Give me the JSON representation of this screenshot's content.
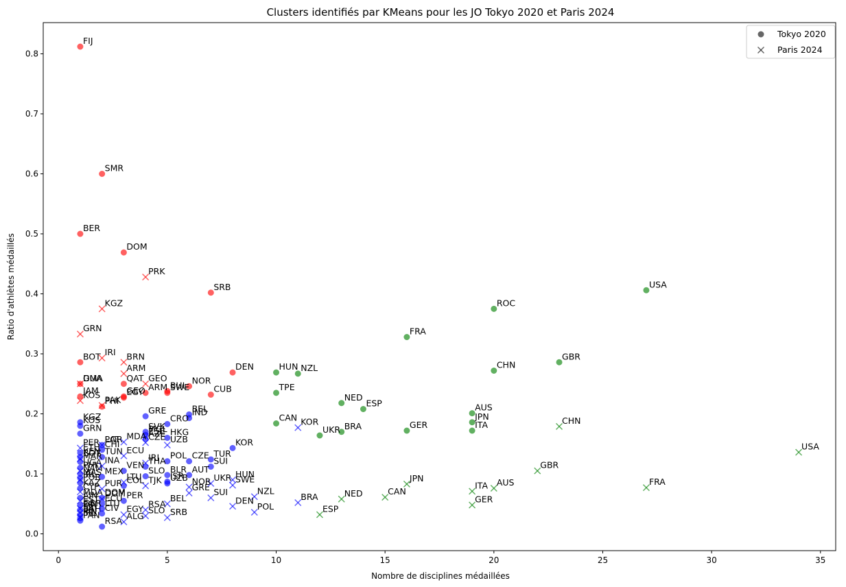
{
  "chart_data": {
    "type": "scatter",
    "title": "Clusters identifiés par KMeans pour les JO Tokyo 2020 et Paris 2024",
    "xlabel": "Nombre de disciplines médaillées",
    "ylabel": "Ratio d'athlètes médaillés",
    "xlim": [
      -0.7,
      35.7
    ],
    "ylim": [
      -0.028,
      0.852
    ],
    "xticks": [
      0,
      5,
      10,
      15,
      20,
      25,
      30,
      35
    ],
    "yticks": [
      0.0,
      0.1,
      0.2,
      0.3,
      0.4,
      0.5,
      0.6,
      0.7,
      0.8
    ],
    "grid": false,
    "legend_position": "top-right",
    "legend": [
      {
        "marker": "circle",
        "label": "Tokyo 2020"
      },
      {
        "marker": "x",
        "label": "Paris 2024"
      }
    ],
    "colors": {
      "cluster_red": "#ff0000",
      "cluster_green": "#008000",
      "cluster_blue": "#0000ff",
      "legend_marker": "#000000"
    },
    "series": [
      {
        "marker": "circle",
        "points": [
          {
            "x": 1,
            "y": 0.812,
            "label": "FIJ",
            "c": "r"
          },
          {
            "x": 2,
            "y": 0.6,
            "label": "SMR",
            "c": "r"
          },
          {
            "x": 1,
            "y": 0.5,
            "label": "BER",
            "c": "r"
          },
          {
            "x": 3,
            "y": 0.469,
            "label": "DOM",
            "c": "r"
          },
          {
            "x": 7,
            "y": 0.402,
            "label": "SRB",
            "c": "r"
          },
          {
            "x": 1,
            "y": 0.286,
            "label": "BOT",
            "c": "r"
          },
          {
            "x": 8,
            "y": 0.269,
            "label": "DEN",
            "c": "r"
          },
          {
            "x": 1,
            "y": 0.25,
            "label": "GUA",
            "c": "r"
          },
          {
            "x": 3,
            "y": 0.25,
            "label": "QAT",
            "c": "r"
          },
          {
            "x": 6,
            "y": 0.246,
            "label": "NOR",
            "c": "r"
          },
          {
            "x": 5,
            "y": 0.238,
            "label": "BUL",
            "c": "r"
          },
          {
            "x": 5,
            "y": 0.235,
            "label": "SWE",
            "c": "r"
          },
          {
            "x": 4,
            "y": 0.235,
            "label": "ARM",
            "c": "r"
          },
          {
            "x": 7,
            "y": 0.232,
            "label": "CUB",
            "c": "r"
          },
          {
            "x": 1,
            "y": 0.229,
            "label": "JAM",
            "c": "r"
          },
          {
            "x": 3,
            "y": 0.229,
            "label": "GEO",
            "c": "r"
          },
          {
            "x": 3,
            "y": 0.227,
            "label": "EGY",
            "c": "r"
          },
          {
            "x": 2,
            "y": 0.212,
            "label": "PHI",
            "c": "r"
          },
          {
            "x": 27,
            "y": 0.406,
            "label": "USA",
            "c": "g"
          },
          {
            "x": 20,
            "y": 0.375,
            "label": "ROC",
            "c": "g"
          },
          {
            "x": 16,
            "y": 0.328,
            "label": "FRA",
            "c": "g"
          },
          {
            "x": 23,
            "y": 0.286,
            "label": "GBR",
            "c": "g"
          },
          {
            "x": 20,
            "y": 0.272,
            "label": "CHN",
            "c": "g"
          },
          {
            "x": 10,
            "y": 0.269,
            "label": "HUN",
            "c": "g"
          },
          {
            "x": 11,
            "y": 0.267,
            "label": "NZL",
            "c": "g"
          },
          {
            "x": 10,
            "y": 0.235,
            "label": "TPE",
            "c": "g"
          },
          {
            "x": 13,
            "y": 0.218,
            "label": "NED",
            "c": "g"
          },
          {
            "x": 14,
            "y": 0.208,
            "label": "ESP",
            "c": "g"
          },
          {
            "x": 19,
            "y": 0.201,
            "label": "AUS",
            "c": "g"
          },
          {
            "x": 19,
            "y": 0.186,
            "label": "JPN",
            "c": "g"
          },
          {
            "x": 10,
            "y": 0.184,
            "label": "CAN",
            "c": "g"
          },
          {
            "x": 19,
            "y": 0.172,
            "label": "ITA",
            "c": "g"
          },
          {
            "x": 16,
            "y": 0.172,
            "label": "GER",
            "c": "g"
          },
          {
            "x": 13,
            "y": 0.17,
            "label": "BRA",
            "c": "g"
          },
          {
            "x": 12,
            "y": 0.164,
            "label": "UKR",
            "c": "g"
          },
          {
            "x": 1,
            "y": 0.186,
            "label": "KGZ",
            "c": "b"
          },
          {
            "x": 1,
            "y": 0.18,
            "label": "KOS",
            "c": "b"
          },
          {
            "x": 1,
            "y": 0.167,
            "label": "GRN",
            "c": "b"
          },
          {
            "x": 4,
            "y": 0.196,
            "label": "GRE",
            "c": "b"
          },
          {
            "x": 6,
            "y": 0.199,
            "label": "BEL",
            "c": "b"
          },
          {
            "x": 6,
            "y": 0.193,
            "label": "IND",
            "c": "b"
          },
          {
            "x": 5,
            "y": 0.183,
            "label": "CRO",
            "c": "b"
          },
          {
            "x": 4,
            "y": 0.17,
            "label": "SVK",
            "c": "b"
          },
          {
            "x": 4,
            "y": 0.165,
            "label": "MGL",
            "c": "b"
          },
          {
            "x": 5,
            "y": 0.16,
            "label": "HKG",
            "c": "b"
          },
          {
            "x": 4,
            "y": 0.158,
            "label": "AZE",
            "c": "b"
          },
          {
            "x": 8,
            "y": 0.143,
            "label": "KOR",
            "c": "b"
          },
          {
            "x": 2,
            "y": 0.148,
            "label": "LAT",
            "c": "b"
          },
          {
            "x": 2,
            "y": 0.14,
            "label": "CHI",
            "c": "b"
          },
          {
            "x": 2,
            "y": 0.128,
            "label": "TUN",
            "c": "b"
          },
          {
            "x": 7,
            "y": 0.124,
            "label": "TUR",
            "c": "b"
          },
          {
            "x": 5,
            "y": 0.121,
            "label": "POL",
            "c": "b"
          },
          {
            "x": 6,
            "y": 0.121,
            "label": "CZE",
            "c": "b"
          },
          {
            "x": 7,
            "y": 0.112,
            "label": "SUI",
            "c": "b"
          },
          {
            "x": 4,
            "y": 0.112,
            "label": "THA",
            "c": "b"
          },
          {
            "x": 3,
            "y": 0.105,
            "label": "VEN",
            "c": "b"
          },
          {
            "x": 4,
            "y": 0.096,
            "label": "SLO",
            "c": "b"
          },
          {
            "x": 5,
            "y": 0.098,
            "label": "BLR",
            "c": "b"
          },
          {
            "x": 6,
            "y": 0.098,
            "label": "AUT",
            "c": "b"
          },
          {
            "x": 5,
            "y": 0.087,
            "label": "ISR",
            "c": "b"
          },
          {
            "x": 5,
            "y": 0.084,
            "label": "UZB",
            "c": "b"
          },
          {
            "x": 3,
            "y": 0.08,
            "label": "COL",
            "c": "b"
          },
          {
            "x": 2,
            "y": 0.06,
            "label": "DOM",
            "c": "b"
          },
          {
            "x": 3,
            "y": 0.055,
            "label": "PER",
            "c": "b"
          },
          {
            "x": 2,
            "y": 0.012,
            "label": "RSA",
            "c": "b"
          },
          {
            "x": 1,
            "y": 0.135,
            "label": "ETH",
            "c": "b"
          },
          {
            "x": 1,
            "y": 0.128,
            "label": "KEN",
            "c": "b"
          },
          {
            "x": 1,
            "y": 0.12,
            "label": "MAR",
            "c": "b"
          },
          {
            "x": 1,
            "y": 0.11,
            "label": "UGA",
            "c": "b"
          },
          {
            "x": 1,
            "y": 0.1,
            "label": "NAM",
            "c": "b"
          },
          {
            "x": 1,
            "y": 0.093,
            "label": "MAS",
            "c": "b"
          },
          {
            "x": 1,
            "y": 0.085,
            "label": "POR",
            "c": "b"
          },
          {
            "x": 1,
            "y": 0.076,
            "label": "KAZ",
            "c": "b"
          },
          {
            "x": 1,
            "y": 0.06,
            "label": "MDA",
            "c": "b"
          },
          {
            "x": 1,
            "y": 0.048,
            "label": "EST",
            "c": "b"
          },
          {
            "x": 1,
            "y": 0.04,
            "label": "FIN",
            "c": "b"
          },
          {
            "x": 1,
            "y": 0.032,
            "label": "BAH",
            "c": "b"
          },
          {
            "x": 1,
            "y": 0.026,
            "label": "IRL",
            "c": "b"
          },
          {
            "x": 1,
            "y": 0.022,
            "label": "PAN",
            "c": "b"
          },
          {
            "x": 2,
            "y": 0.095,
            "label": "MEX",
            "c": "b"
          },
          {
            "x": 2,
            "y": 0.05,
            "label": "ECU",
            "c": "b"
          },
          {
            "x": 2,
            "y": 0.042,
            "label": "LTU",
            "c": "b"
          },
          {
            "x": 2,
            "y": 0.034,
            "label": "CIV",
            "c": "b"
          }
        ]
      },
      {
        "marker": "x",
        "points": [
          {
            "x": 4,
            "y": 0.428,
            "label": "PRK",
            "c": "r"
          },
          {
            "x": 2,
            "y": 0.375,
            "label": "KGZ",
            "c": "r"
          },
          {
            "x": 1,
            "y": 0.333,
            "label": "GRN",
            "c": "r"
          },
          {
            "x": 2,
            "y": 0.293,
            "label": "IRI",
            "c": "r"
          },
          {
            "x": 3,
            "y": 0.286,
            "label": "BRN",
            "c": "r"
          },
          {
            "x": 3,
            "y": 0.267,
            "label": "ARM",
            "c": "r"
          },
          {
            "x": 1,
            "y": 0.25,
            "label": "DMA",
            "c": "r"
          },
          {
            "x": 4,
            "y": 0.25,
            "label": "GEO",
            "c": "r"
          },
          {
            "x": 1,
            "y": 0.222,
            "label": "KOS",
            "c": "r"
          },
          {
            "x": 2,
            "y": 0.214,
            "label": "PAK",
            "c": "r"
          },
          {
            "x": 34,
            "y": 0.136,
            "label": "USA",
            "c": "g"
          },
          {
            "x": 23,
            "y": 0.179,
            "label": "CHN",
            "c": "g"
          },
          {
            "x": 22,
            "y": 0.105,
            "label": "GBR",
            "c": "g"
          },
          {
            "x": 27,
            "y": 0.077,
            "label": "FRA",
            "c": "g"
          },
          {
            "x": 20,
            "y": 0.076,
            "label": "AUS",
            "c": "g"
          },
          {
            "x": 19,
            "y": 0.071,
            "label": "ITA",
            "c": "g"
          },
          {
            "x": 16,
            "y": 0.083,
            "label": "JPN",
            "c": "g"
          },
          {
            "x": 15,
            "y": 0.061,
            "label": "CAN",
            "c": "g"
          },
          {
            "x": 13,
            "y": 0.058,
            "label": "NED",
            "c": "g"
          },
          {
            "x": 12,
            "y": 0.032,
            "label": "ESP",
            "c": "g"
          },
          {
            "x": 19,
            "y": 0.048,
            "label": "GER",
            "c": "g"
          },
          {
            "x": 11,
            "y": 0.177,
            "label": "KOR",
            "c": "b"
          },
          {
            "x": 11,
            "y": 0.052,
            "label": "BRA",
            "c": "b"
          },
          {
            "x": 9,
            "y": 0.062,
            "label": "NZL",
            "c": "b"
          },
          {
            "x": 9,
            "y": 0.036,
            "label": "POL",
            "c": "b"
          },
          {
            "x": 8,
            "y": 0.046,
            "label": "DEN",
            "c": "b"
          },
          {
            "x": 8,
            "y": 0.09,
            "label": "HUN",
            "c": "b"
          },
          {
            "x": 8,
            "y": 0.081,
            "label": "SWE",
            "c": "b"
          },
          {
            "x": 7,
            "y": 0.06,
            "label": "SUI",
            "c": "b"
          },
          {
            "x": 7,
            "y": 0.084,
            "label": "UKR",
            "c": "b"
          },
          {
            "x": 6,
            "y": 0.078,
            "label": "NOR",
            "c": "b"
          },
          {
            "x": 6,
            "y": 0.068,
            "label": "GRE",
            "c": "b"
          },
          {
            "x": 5,
            "y": 0.05,
            "label": "BEL",
            "c": "b"
          },
          {
            "x": 5,
            "y": 0.027,
            "label": "SRB",
            "c": "b"
          },
          {
            "x": 5,
            "y": 0.148,
            "label": "UZB",
            "c": "b"
          },
          {
            "x": 4,
            "y": 0.152,
            "label": "CZE",
            "c": "b"
          },
          {
            "x": 4,
            "y": 0.162,
            "label": "ESF",
            "c": "b"
          },
          {
            "x": 4,
            "y": 0.118,
            "label": "IRI",
            "c": "b"
          },
          {
            "x": 4,
            "y": 0.08,
            "label": "TJK",
            "c": "b"
          },
          {
            "x": 4,
            "y": 0.04,
            "label": "RSA",
            "c": "b"
          },
          {
            "x": 4,
            "y": 0.03,
            "label": "SLO",
            "c": "b"
          },
          {
            "x": 3,
            "y": 0.153,
            "label": "MDA",
            "c": "b"
          },
          {
            "x": 3,
            "y": 0.13,
            "label": "ECU",
            "c": "b"
          },
          {
            "x": 3,
            "y": 0.032,
            "label": "EGY",
            "c": "b"
          },
          {
            "x": 3,
            "y": 0.02,
            "label": "ALG",
            "c": "b"
          },
          {
            "x": 3,
            "y": 0.086,
            "label": "LTU",
            "c": "b"
          },
          {
            "x": 2,
            "y": 0.148,
            "label": "POR",
            "c": "b"
          },
          {
            "x": 2,
            "y": 0.113,
            "label": "INA",
            "c": "b"
          },
          {
            "x": 2,
            "y": 0.075,
            "label": "PUR",
            "c": "b"
          },
          {
            "x": 2,
            "y": 0.058,
            "label": "DOM",
            "c": "b"
          },
          {
            "x": 1,
            "y": 0.143,
            "label": "PER",
            "c": "b"
          },
          {
            "x": 1,
            "y": 0.125,
            "label": "BOT",
            "c": "b"
          },
          {
            "x": 1,
            "y": 0.105,
            "label": "PHI",
            "c": "b"
          },
          {
            "x": 1,
            "y": 0.09,
            "label": "IRL",
            "c": "b"
          },
          {
            "x": 1,
            "y": 0.07,
            "label": "CYP",
            "c": "b"
          },
          {
            "x": 1,
            "y": 0.055,
            "label": "AIN",
            "c": "b"
          },
          {
            "x": 1,
            "y": 0.042,
            "label": "GBR",
            "c": "b"
          },
          {
            "x": 1,
            "y": 0.035,
            "label": "SRI",
            "c": "b"
          },
          {
            "x": 1,
            "y": 0.028,
            "label": "FIN",
            "c": "b"
          }
        ]
      }
    ]
  }
}
